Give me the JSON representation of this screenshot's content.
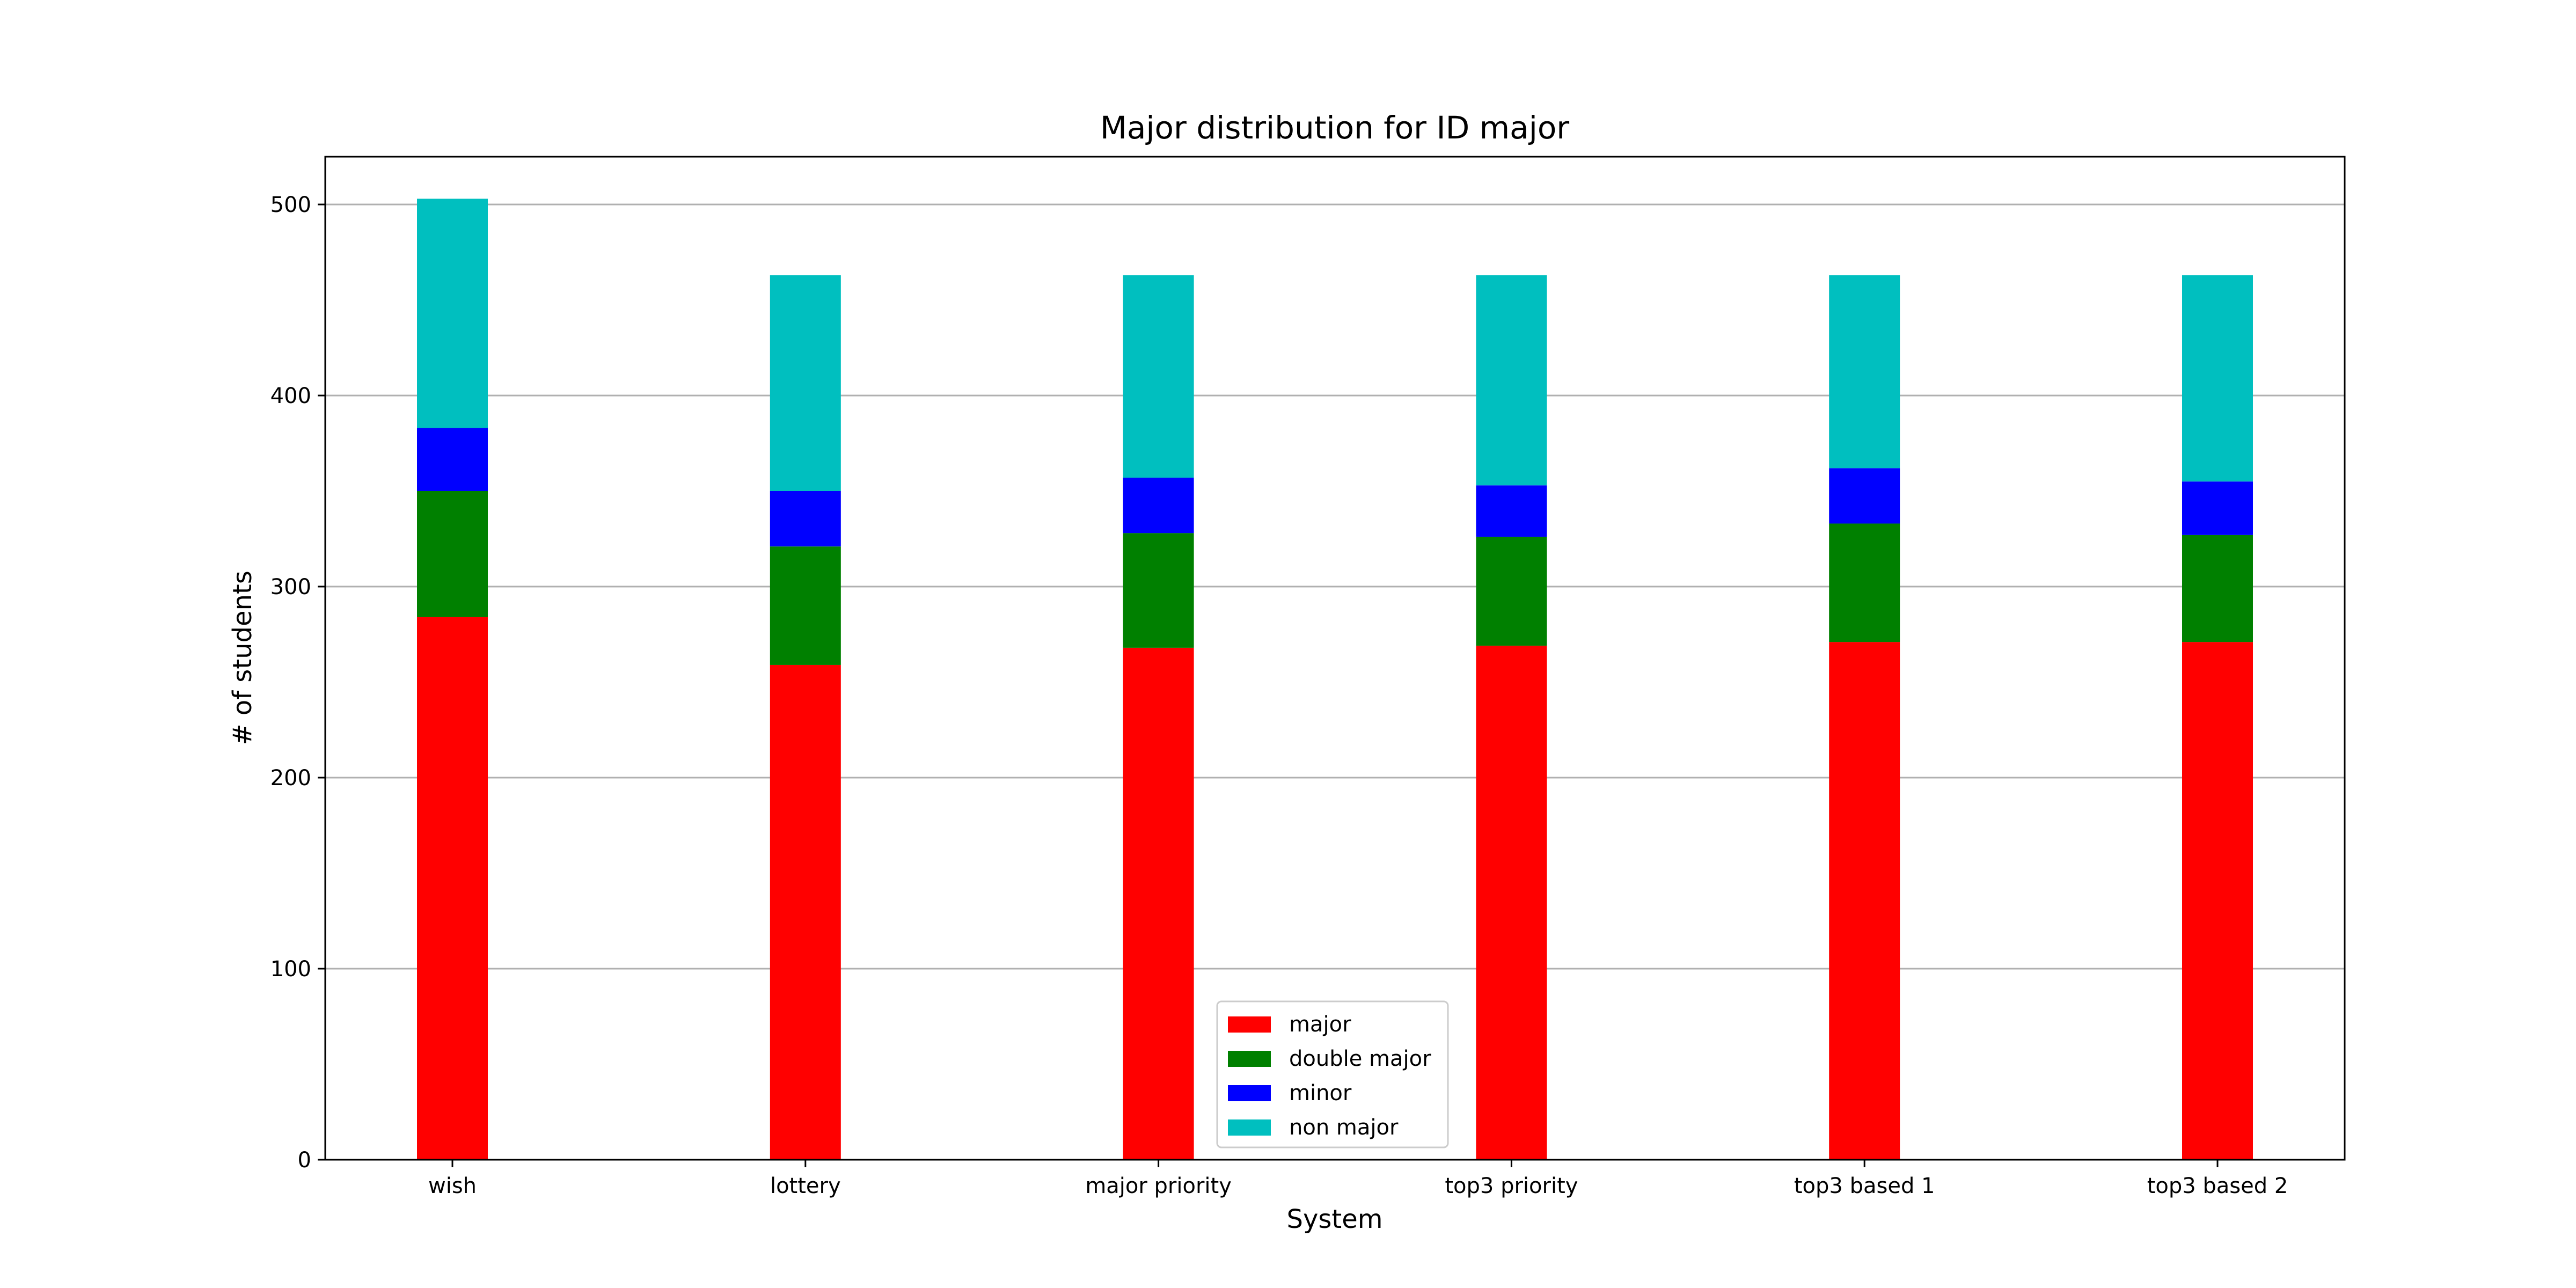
{
  "chart_data": {
    "type": "bar",
    "stacked": true,
    "title": "Major distribution for ID major",
    "xlabel": "System",
    "ylabel": "# of students",
    "ylim": [
      0,
      525
    ],
    "yticks": [
      0,
      100,
      200,
      300,
      400,
      500
    ],
    "grid": "horizontal",
    "legend_position": "lower-center",
    "categories": [
      "wish",
      "lottery",
      "major priority",
      "top3 priority",
      "top3 based 1",
      "top3 based 2"
    ],
    "series": [
      {
        "name": "major",
        "color": "#ff0000",
        "values": [
          284,
          259,
          268,
          269,
          271,
          271
        ]
      },
      {
        "name": "double major",
        "color": "#008000",
        "values": [
          66,
          62,
          60,
          57,
          62,
          56
        ]
      },
      {
        "name": "minor",
        "color": "#0000ff",
        "values": [
          33,
          29,
          29,
          27,
          29,
          28
        ]
      },
      {
        "name": "non major",
        "color": "#00bfbf",
        "values": [
          120,
          113,
          106,
          110,
          101,
          108
        ]
      }
    ]
  }
}
